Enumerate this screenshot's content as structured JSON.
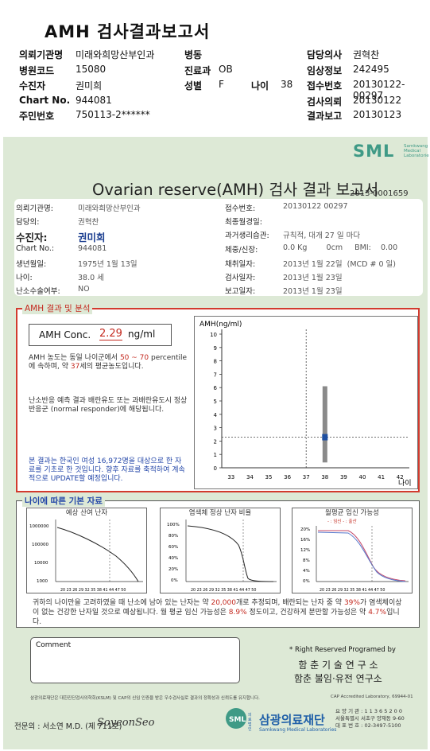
{
  "header": {
    "title": "AMH 검사결과보고서",
    "fields": [
      {
        "label": "의뢰기관명",
        "value": "미래와희망산부인과"
      },
      {
        "label": "병동",
        "value": ""
      },
      {
        "label": "담당의사",
        "value": "권혁찬"
      },
      {
        "label": "병원코드",
        "value": "15080"
      },
      {
        "label": "진료과",
        "value": "OB"
      },
      {
        "label": "임상정보",
        "value": "242495"
      },
      {
        "label": "수진자",
        "value": "권미희"
      },
      {
        "label": "성별",
        "value": "F"
      },
      {
        "label": "나이",
        "value": "38"
      },
      {
        "label": "접수번호",
        "value": "20130122-00297"
      },
      {
        "label": "Chart No.",
        "value": "944081"
      },
      {
        "label": "검사의뢰",
        "value": "20130122"
      },
      {
        "label": "주민번호",
        "value": "750113-2******"
      },
      {
        "label": "결과보고",
        "value": "20130123"
      }
    ]
  },
  "sheet": {
    "logo": "SML",
    "logo_sub": [
      "Samkwang",
      "Medical",
      "Laboratorie"
    ],
    "title": "Ovarian reserve(AMH) 검사 결과 보고서",
    "report_no": "2013-0001659",
    "info_left": [
      {
        "label": "의뢰기관명:",
        "value": "미래와희망산부인과"
      },
      {
        "label": "담당의:",
        "value": "권혁찬"
      },
      {
        "label": "수진자:",
        "value": "권미희"
      },
      {
        "label": "Chart No.:",
        "value": "944081"
      },
      {
        "label": "생년월일:",
        "value": "1975년 1월 13일"
      },
      {
        "label": "나이:",
        "value": "38.0 세"
      },
      {
        "label": "난소수술여부:",
        "value": "NO"
      }
    ],
    "info_right": [
      {
        "label": "접수번호:",
        "value": "20130122 00297"
      },
      {
        "label": "최종월경일:",
        "value": ""
      },
      {
        "label": "과거생리습관:",
        "value": "규칙적, 대개  27 일 마다"
      },
      {
        "label": "체중/신장:",
        "value": "0.0 Kg        0cm     BMI:    0.00"
      },
      {
        "label": "채취일자:",
        "value": "2013년 1월 22일  (MCD # 0 일)"
      },
      {
        "label": "검사일자:",
        "value": "2013년 1월 23일"
      },
      {
        "label": "보고일자:",
        "value": "2013년 1월 23일"
      }
    ]
  },
  "amh": {
    "section_label": "AMH 결과 및 분석",
    "conc_label": "AMH Conc.",
    "conc_value": "2.29",
    "conc_unit": "ng/ml",
    "p1_a": "AMH 농도는 동일 나이군에서",
    "p1_pct": "50 ~ 70",
    "p1_b": "percentile에 속하며, 약",
    "p1_age": "37",
    "p1_c": "세의 평균농도입니다.",
    "p2": "난소반응 예측 결과 배란유도 또는 과배란유도시 정상반응군 (normal responder)에 해당됩니다.",
    "p3": "본 결과는 한국인 여성 16,972명을 대상으로 한 자료를 기초로 한 것입니다. 향후 자료를 축적하여 계속적으로 UPDATE할 예정입니다."
  },
  "chart_data": {
    "type": "scatter",
    "title": "",
    "ylabel": "AMH(ng/ml)",
    "xlabel": "나이",
    "x": [
      33,
      34,
      35,
      36,
      37,
      38,
      39,
      40,
      41,
      42
    ],
    "ylim": [
      0,
      10
    ],
    "yticks": [
      0,
      1,
      2,
      3,
      4,
      5,
      6,
      7,
      8,
      9,
      10
    ],
    "range_bar": {
      "x": 38,
      "low": 0.4,
      "high": 6.1
    },
    "point": {
      "x": 38,
      "y": 2.29
    },
    "ref_x": 37,
    "ref_y": 2.29
  },
  "reference": {
    "section_label": "나이에 따른 기본 자료",
    "charts": [
      {
        "title": "예상 산여 난자",
        "yticks": [
          "1000000",
          "100000",
          "10000",
          "1000"
        ],
        "xticks": "20 23 26 29 32 35 38 41 44 47 50"
      },
      {
        "title": "염색체 정상 난자 비율",
        "yticks": [
          "100%",
          "80%",
          "60%",
          "40%",
          "20%",
          "0%"
        ],
        "xticks": "20 23 26 29 32 35 38 41 44 47 50"
      },
      {
        "title": "월평균 임신 가능성",
        "legend": "- : 임신  - : 출산",
        "yticks": [
          "20%",
          "16%",
          "12%",
          "8%",
          "4%",
          "0%"
        ],
        "xticks": "20 23 26 29 32 35 38 41 44 47 50"
      }
    ],
    "summary_a": "귀하의 나이만을 고려하였을 때 난소에 남아 있는 난자는 약",
    "summary_eggs": "20,000",
    "summary_b": "개로 추정되며, 배란되는 난자 중 약",
    "summary_pct": "39%",
    "summary_c": "가 염색체이상이 없는 건강한 난자일 것으로 예상됩니다. 월 평균 임신 가능성은",
    "summary_preg": "8.9%",
    "summary_d": "정도이고, 건강하게 분만할 가능성은 약",
    "summary_birth": "4.7%",
    "summary_e": "입니다."
  },
  "footer": {
    "comment_label": "Comment",
    "reserved": "* Right Reserved  Programed by",
    "inst1": "함 춘  기 술  연 구 소",
    "inst2": "함춘 불임·유전 연구소",
    "small_left": "삼광의료재단은 대한진단검사의학회(KSLM) 및 CAP의 신임 인증을 받은 우수검사실로 결과의 정확성과 신뢰도를 유지합니다.",
    "small_right": "CAP Accredited Laboratory, 69944-01",
    "doctor": "전문의 : 서소연 M.D. (제 711호)",
    "signature": "SoyeonSeo",
    "foundation_pre": "의료 법인",
    "foundation": "삼광의료재단",
    "foundation_en": "Samkwang Medical Laboratories",
    "addr1": "요 양 기 관 : 1 1 3 6 5 2 0 0",
    "addr2": "서울특별시 서초구 양재동 9-60",
    "addr3": "대 표 번 호 : 02-3497-5100"
  }
}
